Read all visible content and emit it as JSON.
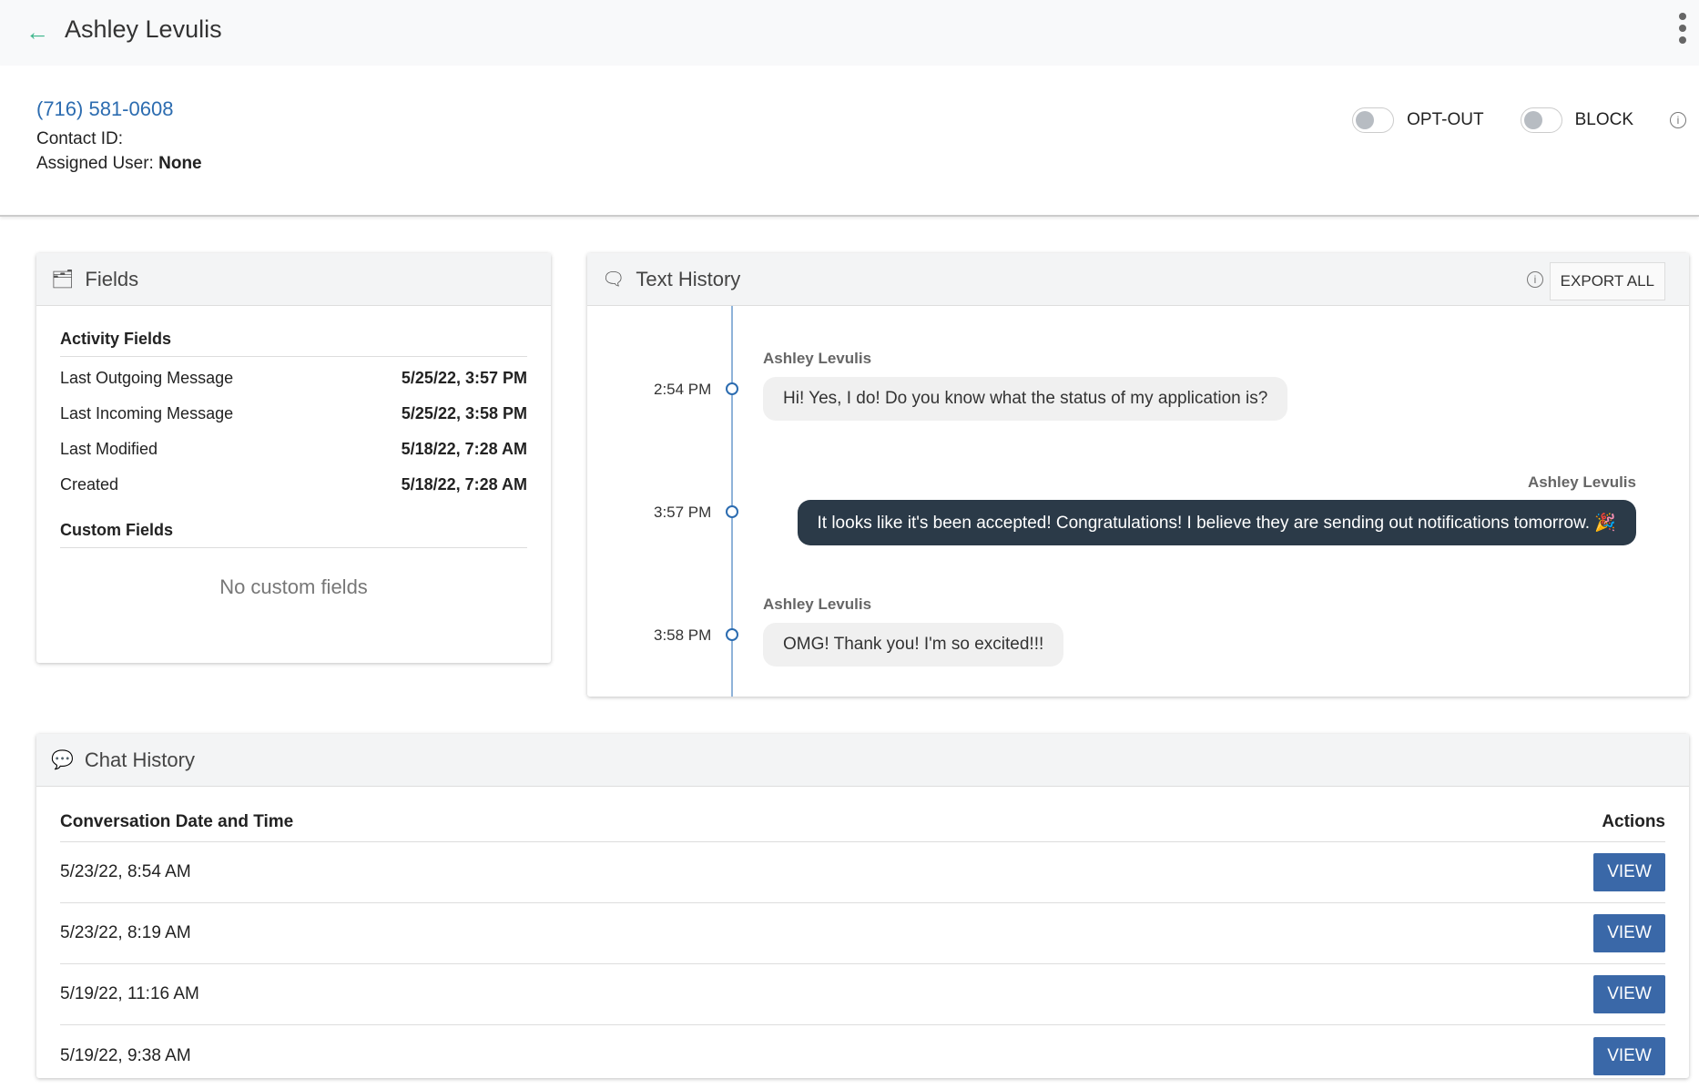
{
  "header": {
    "title": "Ashley Levulis",
    "back_icon": "arrow-left-icon",
    "menu_icon": "kebab-icon"
  },
  "contact": {
    "phone": "(716) 581-0608",
    "contact_id_label": "Contact ID:",
    "assigned_label": "Assigned User:",
    "assigned_value": "None",
    "optout_label": "OPT-OUT",
    "optout_on": false,
    "block_label": "BLOCK",
    "block_on": false
  },
  "fields": {
    "title": "Fields",
    "activity_title": "Activity Fields",
    "rows": [
      {
        "label": "Last Outgoing Message",
        "value": "5/25/22, 3:57 PM"
      },
      {
        "label": "Last Incoming Message",
        "value": "5/25/22, 3:58 PM"
      },
      {
        "label": "Last Modified",
        "value": "5/18/22, 7:28 AM"
      },
      {
        "label": "Created",
        "value": "5/18/22, 7:28 AM"
      }
    ],
    "custom_title": "Custom Fields",
    "no_custom": "No custom fields"
  },
  "text_history": {
    "title": "Text History",
    "export_label": "EXPORT ALL",
    "messages": [
      {
        "time": "2:54 PM",
        "sender": "Ashley Levulis",
        "text": "Hi! Yes, I do! Do you know what the status of my application is?",
        "direction": "incoming"
      },
      {
        "time": "3:57 PM",
        "sender": "Ashley Levulis",
        "text": "It looks like it's been accepted! Congratulations! I believe they are sending out notifications tomorrow. 🎉",
        "direction": "outgoing"
      },
      {
        "time": "3:58 PM",
        "sender": "Ashley Levulis",
        "text": "OMG! Thank you! I'm so excited!!!",
        "direction": "incoming"
      }
    ]
  },
  "chat_history": {
    "title": "Chat History",
    "col_date": "Conversation Date and Time",
    "col_actions": "Actions",
    "view_label": "VIEW",
    "rows": [
      "5/23/22, 8:54 AM",
      "5/23/22, 8:19 AM",
      "5/19/22, 11:16 AM",
      "5/19/22, 9:38 AM"
    ]
  }
}
